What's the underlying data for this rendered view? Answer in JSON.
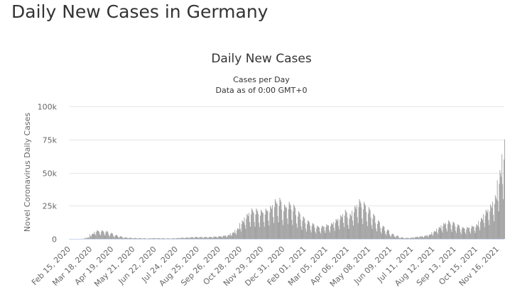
{
  "page": {
    "title": "Daily New Cases in Germany"
  },
  "chart_data": {
    "type": "bar",
    "title": "Daily New Cases",
    "subtitle": [
      "Cases per Day",
      "Data as of 0:00 GMT+0"
    ],
    "ylabel": "Novel Coronavirus Daily Cases",
    "xlabel": "",
    "ylim": [
      0,
      100000
    ],
    "yticks": [
      0,
      25000,
      50000,
      75000,
      100000
    ],
    "ytick_labels": [
      "0",
      "25k",
      "50k",
      "75k",
      "100k"
    ],
    "x_start": "Feb 15, 2020",
    "x_step": "1 day",
    "xtick_interval_days": 32,
    "xtick_labels": [
      "Feb 15, 2020",
      "Mar 18, 2020",
      "Apr 19, 2020",
      "May 21, 2020",
      "Jun 22, 2020",
      "Jul 24, 2020",
      "Aug 25, 2020",
      "Sep 26, 2020",
      "Oct 28, 2020",
      "Nov 29, 2020",
      "Dec 31, 2020",
      "Feb 01, 2021",
      "Mar 05, 2021",
      "Apr 06, 2021",
      "May 08, 2021",
      "Jun 09, 2021",
      "Jul 11, 2021",
      "Aug 12, 2021",
      "Sep 13, 2021",
      "Oct 15, 2021",
      "Nov 16, 2021"
    ],
    "grid": true,
    "bar_color": "#999999",
    "values": [
      0,
      0,
      0,
      0,
      0,
      0,
      0,
      0,
      0,
      0,
      0,
      0,
      0,
      0,
      100,
      100,
      0,
      100,
      100,
      100,
      100,
      900,
      600,
      400,
      800,
      1000,
      1000,
      900,
      3400,
      2200,
      1600,
      3200,
      4000,
      3800,
      3600,
      5500,
      3600,
      2600,
      5200,
      6500,
      6200,
      5900,
      5500,
      3600,
      2600,
      5200,
      6500,
      6200,
      5900,
      5100,
      3300,
      2400,
      4800,
      6000,
      5700,
      5400,
      3800,
      2500,
      1800,
      3600,
      4500,
      4300,
      4100,
      2600,
      1700,
      1200,
      2400,
      3000,
      2900,
      2700,
      1700,
      1100,
      800,
      1600,
      2000,
      1900,
      1800,
      1000,
      700,
      500,
      1000,
      1200,
      1100,
      1100,
      800,
      500,
      400,
      700,
      900,
      900,
      800,
      600,
      400,
      300,
      600,
      700,
      700,
      600,
      500,
      300,
      200,
      500,
      600,
      600,
      500,
      400,
      300,
      200,
      400,
      500,
      500,
      500,
      300,
      200,
      200,
      300,
      400,
      400,
      400,
      500,
      300,
      200,
      500,
      600,
      600,
      500,
      500,
      300,
      200,
      500,
      600,
      600,
      500,
      400,
      300,
      200,
      400,
      500,
      500,
      500,
      300,
      200,
      200,
      300,
      400,
      400,
      400,
      300,
      200,
      200,
      300,
      400,
      400,
      400,
      500,
      300,
      200,
      500,
      600,
      600,
      500,
      800,
      500,
      400,
      700,
      900,
      900,
      800,
      900,
      600,
      400,
      800,
      1000,
      1000,
      900,
      1100,
      700,
      500,
      1000,
      1300,
      1200,
      1200,
      1300,
      800,
      600,
      1200,
      1500,
      1400,
      1400,
      1300,
      800,
      600,
      1200,
      1500,
      1400,
      1400,
      1300,
      800,
      600,
      1200,
      1500,
      1400,
      1400,
      1300,
      800,
      600,
      1200,
      1500,
      1400,
      1400,
      1500,
      1000,
      700,
      1400,
      1800,
      1700,
      1600,
      1700,
      1100,
      800,
      1600,
      2000,
      1900,
      1800,
      2100,
      1400,
      1000,
      2000,
      2500,
      2400,
      2300,
      2600,
      1700,
      1200,
      2400,
      3000,
      2900,
      2700,
      4300,
      2800,
      2000,
      4000,
      5000,
      4800,
      4500,
      6800,
      4400,
      3200,
      6400,
      8000,
      7600,
      7200,
      11900,
      7700,
      5600,
      11200,
      14000,
      13300,
      12600,
      16200,
      10500,
      7600,
      15200,
      19000,
      18100,
      17100,
      19600,
      12700,
      9200,
      18400,
      23000,
      21900,
      20700,
      19600,
      12700,
      9200,
      18400,
      23000,
      21900,
      20700,
      18700,
      12100,
      8800,
      17600,
      22000,
      20900,
      19800,
      19600,
      12700,
      9200,
      18400,
      23000,
      21900,
      20700,
      21300,
      13800,
      10000,
      20000,
      25000,
      23800,
      22500,
      25500,
      16500,
      12000,
      24000,
      30000,
      28500,
      27000,
      26400,
      17100,
      12400,
      24800,
      31000,
      29500,
      27900,
      22100,
      14300,
      10400,
      20800,
      26000,
      24700,
      23400,
      23800,
      15400,
      11200,
      22400,
      28000,
      26600,
      25200,
      22100,
      14300,
      10400,
      20800,
      26000,
      24700,
      23400,
      17900,
      11600,
      8400,
      16800,
      21000,
      20000,
      18900,
      14500,
      9400,
      6800,
      13600,
      17000,
      16200,
      15300,
      11900,
      7700,
      5600,
      11200,
      14000,
      13300,
      12600,
      10200,
      6600,
      4800,
      9600,
      12000,
      11400,
      10800,
      8500,
      5500,
      4000,
      8000,
      10000,
      9500,
      9000,
      8500,
      5500,
      4000,
      8000,
      10000,
      9500,
      9000,
      9400,
      6100,
      4400,
      8800,
      11000,
      10500,
      9900,
      10200,
      6600,
      4800,
      9600,
      12000,
      11400,
      10800,
      12800,
      8300,
      6000,
      12000,
      15000,
      14300,
      13500,
      15300,
      9900,
      7200,
      14400,
      18000,
      17100,
      16200,
      18700,
      12100,
      8800,
      17600,
      22000,
      20900,
      19800,
      16200,
      10500,
      7600,
      15200,
      19000,
      18100,
      17100,
      21300,
      13800,
      10000,
      20000,
      25000,
      23800,
      22500,
      25500,
      16500,
      12000,
      24000,
      30000,
      28500,
      27000,
      23800,
      15400,
      11200,
      22400,
      28000,
      26600,
      25200,
      20400,
      13200,
      9600,
      19200,
      24000,
      22800,
      21600,
      16200,
      10500,
      7600,
      15200,
      19000,
      18100,
      17100,
      11900,
      7700,
      5600,
      11200,
      14000,
      13300,
      12600,
      8500,
      5500,
      4000,
      8000,
      10000,
      9500,
      9000,
      6000,
      3900,
      2800,
      5600,
      7000,
      6700,
      6300,
      3400,
      2200,
      1600,
      3200,
      4000,
      3800,
      3600,
      2100,
      1400,
      1000,
      2000,
      2500,
      2400,
      2300,
      1000,
      700,
      500,
      1000,
      1200,
      1100,
      1100,
      700,
      400,
      300,
      600,
      800,
      800,
      700,
      800,
      500,
      400,
      700,
      900,
      900,
      800,
      1300,
      800,
      600,
      1200,
      1500,
      1400,
      1400,
      1700,
      1100,
      800,
      1600,
      2000,
      1900,
      1800,
      2100,
      1400,
      1000,
      2000,
      2500,
      2400,
      2300,
      3000,
      1900,
      1400,
      2800,
      3500,
      3300,
      3200,
      5100,
      3300,
      2400,
      4800,
      6000,
      5700,
      5400,
      7700,
      5000,
      3600,
      7200,
      9000,
      8600,
      8100,
      10200,
      6600,
      4800,
      9600,
      12000,
      11400,
      10800,
      11900,
      7700,
      5600,
      11200,
      14000,
      13300,
      12600,
      11100,
      7200,
      5200,
      10400,
      13000,
      12400,
      11700,
      9400,
      6100,
      4400,
      8800,
      11000,
      10500,
      9900,
      7700,
      5000,
      3600,
      7200,
      9000,
      8600,
      8100,
      7700,
      5000,
      3600,
      7200,
      9000,
      8600,
      8100,
      8500,
      5500,
      4000,
      8000,
      10000,
      9500,
      9000,
      9400,
      6100,
      4400,
      8800,
      11000,
      10500,
      9900,
      13600,
      8800,
      6400,
      12800,
      16000,
      15200,
      14400,
      18700,
      12100,
      8800,
      17600,
      22000,
      20900,
      19800,
      22100,
      14300,
      10400,
      20800,
      26000,
      24700,
      23400,
      28100,
      18200,
      13200,
      26400,
      33000,
      31400,
      29700,
      44200,
      28600,
      20800,
      41600,
      52000,
      49400,
      46800,
      63800,
      41300,
      30000,
      60000,
      75000
    ]
  }
}
